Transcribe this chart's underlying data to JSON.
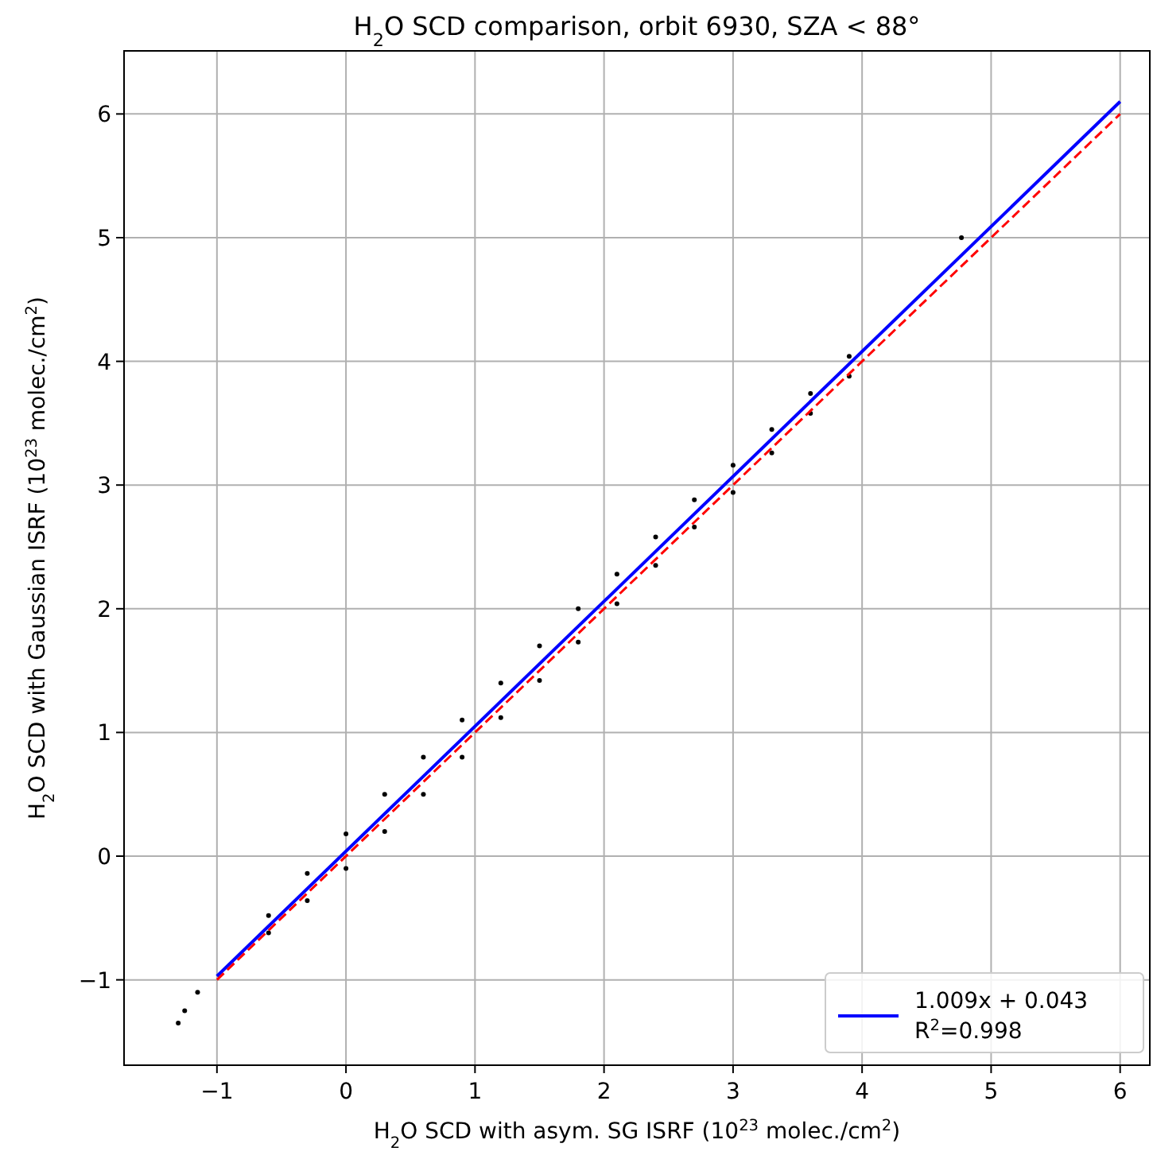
{
  "chart_data": {
    "type": "scatter",
    "title": "H$_{2}$O SCD comparison, orbit 6930, SZA < 88°",
    "xlabel": "H$_{2}$O SCD with asym. SG ISRF (10$^{23}$ molec./cm$^{2}$)",
    "ylabel": "H$_{2}$O SCD with Gaussian ISRF (10$^{23}$ molec./cm$^{2}$)",
    "xlim": [
      -1.72,
      6.23
    ],
    "ylim": [
      -1.69,
      6.51
    ],
    "xticks": [
      {
        "value": -1,
        "label": "−1"
      },
      0,
      1,
      2,
      3,
      4,
      5,
      6
    ],
    "yticks": [
      {
        "value": -1,
        "label": "−1"
      },
      0,
      1,
      2,
      3,
      4,
      5,
      6
    ],
    "grid": true,
    "legend": "bottom right",
    "series": [
      {
        "color": "#000000",
        "x": [
          -1.3,
          -1.25,
          -1.15,
          -0.6,
          -0.6,
          -0.3,
          -0.3,
          0,
          0,
          0.3,
          0.3,
          0.6,
          0.6,
          0.9,
          0.9,
          1.2,
          1.2,
          1.5,
          1.5,
          1.8,
          1.8,
          2.1,
          2.1,
          2.4,
          2.4,
          2.7,
          2.7,
          3.0,
          3.0,
          3.3,
          3.3,
          3.6,
          3.6,
          3.9,
          3.9,
          4.77
        ],
        "values": [
          -1.35,
          -1.25,
          -1.1,
          -0.48,
          -0.62,
          -0.14,
          -0.36,
          0.18,
          -0.1,
          0.5,
          0.2,
          0.8,
          0.5,
          1.1,
          0.8,
          1.4,
          1.12,
          1.7,
          1.42,
          2.0,
          1.73,
          2.28,
          2.04,
          2.58,
          2.35,
          2.88,
          2.66,
          3.16,
          2.94,
          3.45,
          3.26,
          3.74,
          3.58,
          4.04,
          3.88,
          5.0
        ]
      },
      {
        "type": "line",
        "name": "1.009x + 0.043\nR$^{2}$=0.998",
        "color": "#0000ff",
        "line_style": "solid",
        "x": [
          -1,
          6
        ],
        "values": [
          -0.97,
          6.1
        ]
      },
      {
        "type": "line",
        "color": "#ff0000",
        "line_style": "dashed",
        "x": [
          -1,
          6
        ],
        "values": [
          -1,
          6
        ]
      }
    ]
  }
}
